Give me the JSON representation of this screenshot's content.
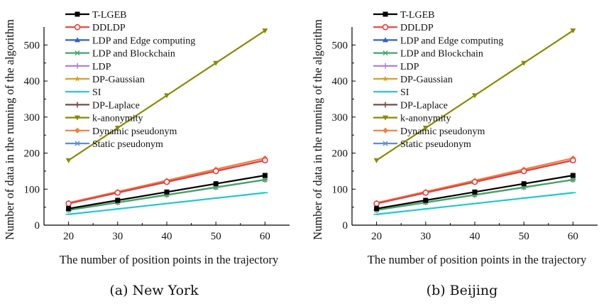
{
  "chart_data": [
    {
      "type": "line",
      "caption": "(a) New York",
      "xlabel": "The number of position points in the trajectory",
      "ylabel": "Number of data in the running of the algorithm",
      "xlim": [
        15,
        65
      ],
      "ylim": [
        0,
        550
      ],
      "x": [
        20,
        30,
        40,
        50,
        60
      ],
      "xticks": [
        20,
        30,
        40,
        50,
        60
      ],
      "yticks": [
        0,
        100,
        200,
        300,
        400,
        500
      ],
      "legend_position": "top-left",
      "series": [
        {
          "name": "T-LGEB",
          "color": "#000000",
          "marker": "square",
          "values": [
            46,
            69,
            92,
            115,
            138
          ]
        },
        {
          "name": "DDLDP",
          "color": "#e8413c",
          "marker": "circle-open",
          "values": [
            60,
            90,
            120,
            150,
            180
          ]
        },
        {
          "name": "LDP and Edge computing",
          "color": "#2f64c8",
          "marker": "triangle-up",
          "values": [
            60,
            90,
            120,
            150,
            180
          ]
        },
        {
          "name": "LDP and Blockchain",
          "color": "#3fa86a",
          "marker": "star-x",
          "values": [
            42,
            63,
            84,
            105,
            126
          ]
        },
        {
          "name": "LDP",
          "color": "#a77dd6",
          "marker": "plus",
          "values": [
            42,
            63,
            84,
            105,
            126
          ]
        },
        {
          "name": "DP-Gaussian",
          "color": "#d9a21c",
          "marker": "star",
          "values": [
            42,
            63,
            84,
            105,
            126
          ]
        },
        {
          "name": "SI",
          "color": "#1fc8cc",
          "marker": "dash",
          "values": [
            30,
            45,
            60,
            75,
            90
          ]
        },
        {
          "name": "DP-Laplace",
          "color": "#7a4a4a",
          "marker": "vbar",
          "values": [
            42,
            63,
            84,
            105,
            126
          ]
        },
        {
          "name": "k-anonymity",
          "color": "#8a8a00",
          "marker": "triangle-down",
          "values": [
            180,
            270,
            360,
            450,
            540
          ]
        },
        {
          "name": "Dynamic pseudonym",
          "color": "#f07f3c",
          "marker": "diamond",
          "values": [
            62,
            93,
            124,
            155,
            186
          ]
        },
        {
          "name": "Static pseudonym",
          "color": "#5b8fd6",
          "marker": "x",
          "values": [
            60,
            90,
            120,
            150,
            180
          ]
        }
      ]
    },
    {
      "type": "line",
      "caption": "(b) Beijing",
      "xlabel": "The number of position points in the trajectory",
      "ylabel": "Number of data in the running of the algorithm",
      "xlim": [
        15,
        65
      ],
      "ylim": [
        0,
        550
      ],
      "x": [
        20,
        30,
        40,
        50,
        60
      ],
      "xticks": [
        20,
        30,
        40,
        50,
        60
      ],
      "yticks": [
        0,
        100,
        200,
        300,
        400,
        500
      ],
      "legend_position": "top-left",
      "series": [
        {
          "name": "T-LGEB",
          "color": "#000000",
          "marker": "square",
          "values": [
            46,
            69,
            92,
            115,
            138
          ]
        },
        {
          "name": "DDLDP",
          "color": "#e8413c",
          "marker": "circle-open",
          "values": [
            60,
            90,
            120,
            150,
            180
          ]
        },
        {
          "name": "LDP and Edge computing",
          "color": "#2f64c8",
          "marker": "triangle-up",
          "values": [
            60,
            90,
            120,
            150,
            180
          ]
        },
        {
          "name": "LDP and Blockchain",
          "color": "#3fa86a",
          "marker": "star-x",
          "values": [
            42,
            63,
            84,
            105,
            126
          ]
        },
        {
          "name": "LDP",
          "color": "#a77dd6",
          "marker": "plus",
          "values": [
            42,
            63,
            84,
            105,
            126
          ]
        },
        {
          "name": "DP-Gaussian",
          "color": "#d9a21c",
          "marker": "star",
          "values": [
            42,
            63,
            84,
            105,
            126
          ]
        },
        {
          "name": "SI",
          "color": "#1fc8cc",
          "marker": "dash",
          "values": [
            30,
            45,
            60,
            75,
            90
          ]
        },
        {
          "name": "DP-Laplace",
          "color": "#7a4a4a",
          "marker": "vbar",
          "values": [
            42,
            63,
            84,
            105,
            126
          ]
        },
        {
          "name": "k-anonymity",
          "color": "#8a8a00",
          "marker": "triangle-down",
          "values": [
            180,
            270,
            360,
            450,
            540
          ]
        },
        {
          "name": "Dynamic pseudonym",
          "color": "#f07f3c",
          "marker": "diamond",
          "values": [
            62,
            93,
            124,
            155,
            186
          ]
        },
        {
          "name": "Static pseudonym",
          "color": "#5b8fd6",
          "marker": "x",
          "values": [
            60,
            90,
            120,
            150,
            180
          ]
        }
      ]
    }
  ]
}
